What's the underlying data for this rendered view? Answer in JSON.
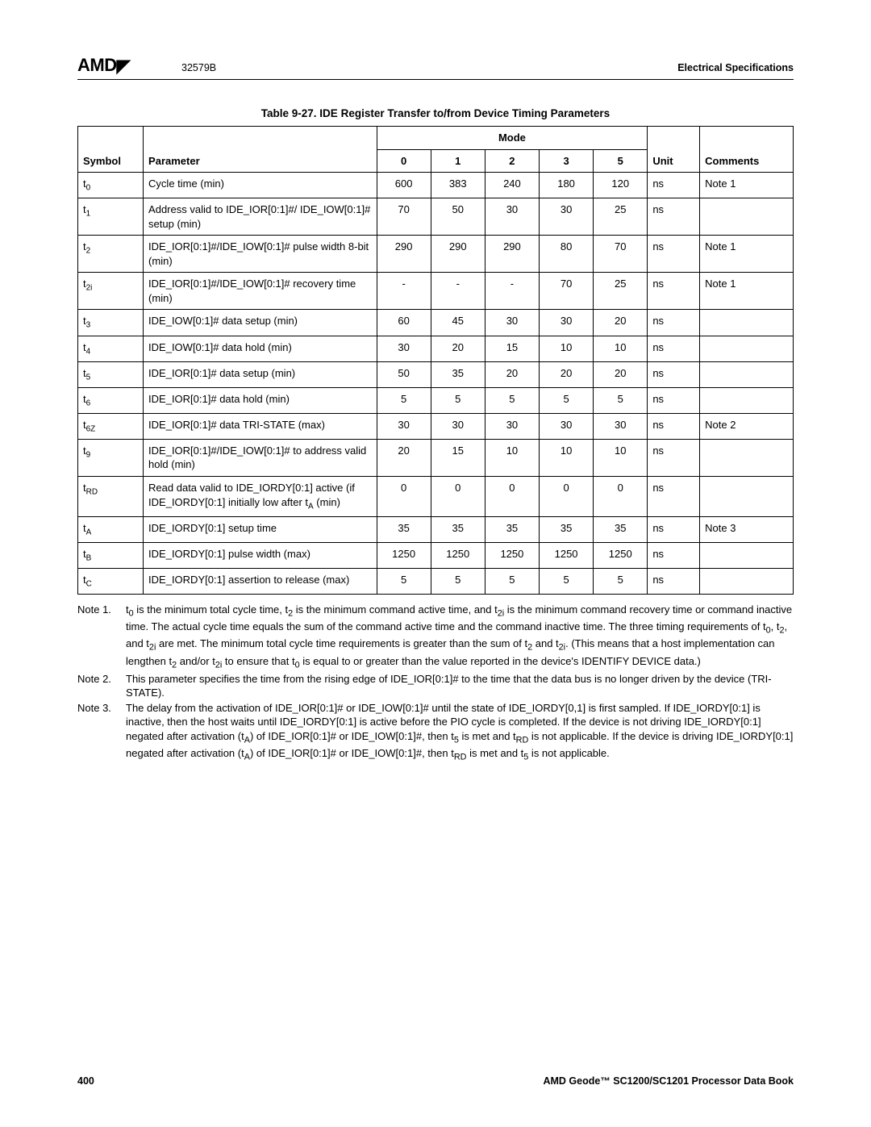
{
  "header": {
    "logo_text": "AMD",
    "doc_code": "32579B",
    "right_title": "Electrical Specifications"
  },
  "caption": "Table 9-27.  IDE Register Transfer to/from Device Timing Parameters",
  "columns": {
    "symbol": "Symbol",
    "parameter": "Parameter",
    "mode": "Mode",
    "modes": [
      "0",
      "1",
      "2",
      "3",
      "5"
    ],
    "unit": "Unit",
    "comments": "Comments"
  },
  "col_widths": {
    "symbol": "70px",
    "parameter": "250px",
    "mode": "58px",
    "unit": "56px",
    "comments": "100px"
  },
  "rows": [
    {
      "sym_base": "t",
      "sym_sub": "0",
      "param": "Cycle time (min)",
      "v": [
        "600",
        "383",
        "240",
        "180",
        "120"
      ],
      "unit": "ns",
      "comment": "Note 1"
    },
    {
      "sym_base": "t",
      "sym_sub": "1",
      "param": "Address valid to IDE_IOR[0:1]#/ IDE_IOW[0:1]# setup (min)",
      "v": [
        "70",
        "50",
        "30",
        "30",
        "25"
      ],
      "unit": "ns",
      "comment": ""
    },
    {
      "sym_base": "t",
      "sym_sub": "2",
      "param": "IDE_IOR[0:1]#/IDE_IOW[0:1]# pulse width 8-bit (min)",
      "v": [
        "290",
        "290",
        "290",
        "80",
        "70"
      ],
      "unit": "ns",
      "comment": "Note 1"
    },
    {
      "sym_base": "t",
      "sym_sub": "2i",
      "param": "IDE_IOR[0:1]#/IDE_IOW[0:1]# recovery time (min)",
      "v": [
        "-",
        "-",
        "-",
        "70",
        "25"
      ],
      "unit": "ns",
      "comment": "Note 1"
    },
    {
      "sym_base": "t",
      "sym_sub": "3",
      "param": "IDE_IOW[0:1]# data setup (min)",
      "v": [
        "60",
        "45",
        "30",
        "30",
        "20"
      ],
      "unit": "ns",
      "comment": ""
    },
    {
      "sym_base": "t",
      "sym_sub": "4",
      "param": "IDE_IOW[0:1]# data hold (min)",
      "v": [
        "30",
        "20",
        "15",
        "10",
        "10"
      ],
      "unit": "ns",
      "comment": ""
    },
    {
      "sym_base": "t",
      "sym_sub": "5",
      "param": "IDE_IOR[0:1]# data setup (min)",
      "v": [
        "50",
        "35",
        "20",
        "20",
        "20"
      ],
      "unit": "ns",
      "comment": ""
    },
    {
      "sym_base": "t",
      "sym_sub": "6",
      "param": "IDE_IOR[0:1]# data hold (min)",
      "v": [
        "5",
        "5",
        "5",
        "5",
        "5"
      ],
      "unit": "ns",
      "comment": ""
    },
    {
      "sym_base": "t",
      "sym_sub": "6Z",
      "param": "IDE_IOR[0:1]# data TRI-STATE (max)",
      "v": [
        "30",
        "30",
        "30",
        "30",
        "30"
      ],
      "unit": "ns",
      "comment": "Note 2"
    },
    {
      "sym_base": "t",
      "sym_sub": "9",
      "param": "IDE_IOR[0:1]#/IDE_IOW[0:1]# to address valid hold (min)",
      "v": [
        "20",
        "15",
        "10",
        "10",
        "10"
      ],
      "unit": "ns",
      "comment": ""
    },
    {
      "sym_base": "t",
      "sym_sub": "RD",
      "param": "Read data valid to IDE_IORDY[0:1] active (if IDE_IORDY[0:1] initially low after t",
      "param_sub_base": "A",
      "param_tail": " (min)",
      "v": [
        "0",
        "0",
        "0",
        "0",
        "0"
      ],
      "unit": "ns",
      "comment": ""
    },
    {
      "sym_base": "t",
      "sym_sub": "A",
      "param": "IDE_IORDY[0:1] setup time",
      "v": [
        "35",
        "35",
        "35",
        "35",
        "35"
      ],
      "unit": "ns",
      "comment": "Note 3"
    },
    {
      "sym_base": "t",
      "sym_sub": "B",
      "param": "IDE_IORDY[0:1] pulse width (max)",
      "v": [
        "1250",
        "1250",
        "1250",
        "1250",
        "1250"
      ],
      "unit": "ns",
      "comment": ""
    },
    {
      "sym_base": "t",
      "sym_sub": "C",
      "param": "IDE_IORDY[0:1] assertion to release (max)",
      "v": [
        "5",
        "5",
        "5",
        "5",
        "5"
      ],
      "unit": "ns",
      "comment": ""
    }
  ],
  "notes": [
    {
      "label": "Note 1.",
      "html": "t<sub>0</sub> is the minimum total cycle time, t<sub>2</sub> is the minimum command active time, and t<sub>2i</sub> is the minimum command recovery time or command inactive time. The actual cycle time equals the sum of the command active time and the command inactive time. The three timing requirements of t<sub>0</sub>, t<sub>2</sub>, and t<sub>2i</sub> are met. The minimum total cycle time requirements is greater than the sum of t<sub>2</sub> and t<sub>2i</sub>. (This means that a host implementation can lengthen t<sub>2</sub> and/or t<sub>2i</sub> to ensure that t<sub>0</sub> is equal to or greater than the value reported in the device's IDENTIFY DEVICE data.)"
    },
    {
      "label": "Note 2.",
      "html": "This parameter specifies the time from the rising edge of IDE_IOR[0:1]# to the time that the data bus is no longer driven by the device (TRI-STATE)."
    },
    {
      "label": "Note 3.",
      "html": "The delay from the activation of IDE_IOR[0:1]# or IDE_IOW[0:1]# until the state of IDE_IORDY[0,1] is first sampled. If IDE_IORDY[0:1] is inactive, then the host waits until IDE_IORDY[0:1] is active before the PIO cycle is completed. If the device is not driving IDE_IORDY[0:1] negated after activation (t<sub>A</sub>) of IDE_IOR[0:1]# or IDE_IOW[0:1]#, then t<sub>5</sub> is met and t<sub>RD</sub> is not applicable. If the device is driving IDE_IORDY[0:1] negated after activation (t<sub>A</sub>) of IDE_IOR[0:1]# or IDE_IOW[0:1]#, then t<sub>RD</sub> is met and t<sub>5</sub> is not applicable."
    }
  ],
  "footer": {
    "page": "400",
    "book": "AMD Geode™ SC1200/SC1201 Processor Data Book"
  }
}
